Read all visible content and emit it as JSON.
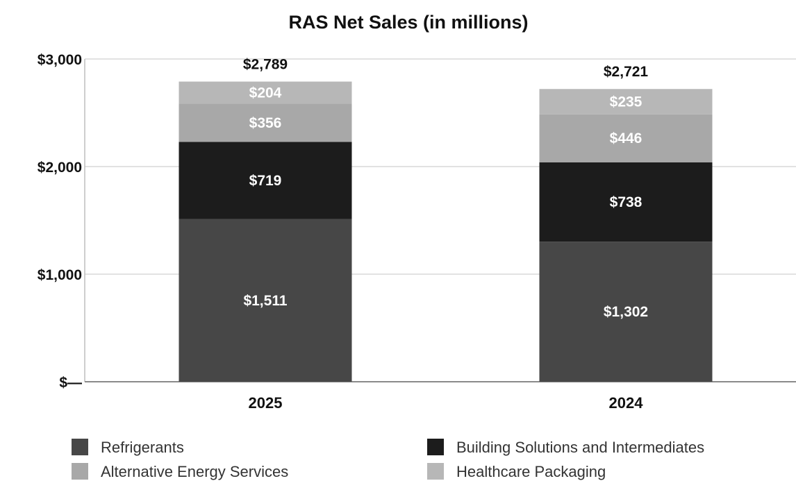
{
  "chart_data": {
    "type": "bar",
    "stacked": true,
    "title": "RAS Net Sales (in millions)",
    "xlabel": "",
    "ylabel": "",
    "categories": [
      "2025",
      "2024"
    ],
    "ylim": [
      0,
      3000
    ],
    "yticks": [
      0,
      1000,
      2000,
      3000
    ],
    "ytick_labels": [
      "$—",
      "$1,000",
      "$2,000",
      "$3,000"
    ],
    "grid": true,
    "legend_position": "bottom",
    "series": [
      {
        "name": "Refrigerants",
        "values": [
          1511,
          1302
        ],
        "value_labels": [
          "$1,511",
          "$1,302"
        ],
        "color": "#474747"
      },
      {
        "name": "Building Solutions and Intermediates",
        "values": [
          719,
          738
        ],
        "value_labels": [
          "$719",
          "$738"
        ],
        "color": "#1c1c1c"
      },
      {
        "name": "Alternative Energy Services",
        "values": [
          356,
          446
        ],
        "value_labels": [
          "$356",
          "$446"
        ],
        "color": "#a8a8a8"
      },
      {
        "name": "Healthcare Packaging",
        "values": [
          204,
          235
        ],
        "value_labels": [
          "$204",
          "$235"
        ],
        "color": "#b7b7b7"
      }
    ],
    "totals": [
      2789,
      2721
    ],
    "total_labels": [
      "$2,789",
      "$2,721"
    ],
    "legend_order": [
      "Refrigerants",
      "Building Solutions and Intermediates",
      "Alternative Energy Services",
      "Healthcare Packaging"
    ]
  }
}
